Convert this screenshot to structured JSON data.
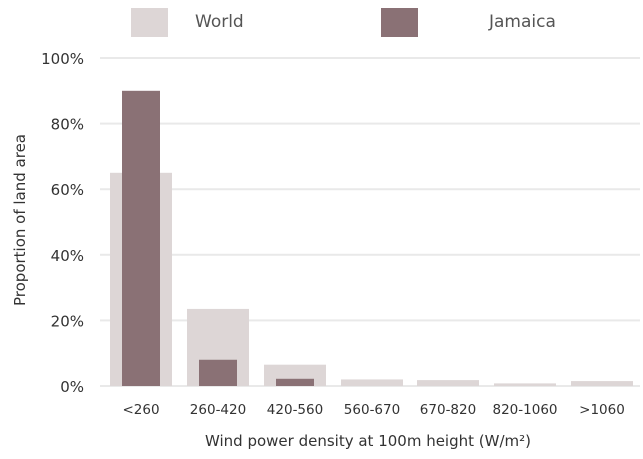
{
  "chart_data": {
    "type": "bar",
    "categories": [
      "<260",
      "260-420",
      "420-560",
      "560-670",
      "670-820",
      "820-1060",
      ">1060"
    ],
    "series": [
      {
        "name": "World",
        "values": [
          65,
          23.5,
          6.5,
          2,
          1.8,
          0.8,
          1.5
        ],
        "color": "#ddd6d6"
      },
      {
        "name": "Jamaica",
        "values": [
          90,
          8,
          2.2,
          0,
          0,
          0,
          0
        ],
        "color": "#8a7175"
      }
    ],
    "xlabel": "Wind power density at 100m height (W/m²)",
    "ylabel": "Proportion of land area",
    "ylim": [
      0,
      100
    ],
    "yticks": [
      {
        "value": 0,
        "label": "0%"
      },
      {
        "value": 20,
        "label": "20%"
      },
      {
        "value": 40,
        "label": "40%"
      },
      {
        "value": 60,
        "label": "60%"
      },
      {
        "value": 80,
        "label": "80%"
      },
      {
        "value": 100,
        "label": "100%"
      }
    ],
    "grid": true,
    "legend_position": "top"
  }
}
